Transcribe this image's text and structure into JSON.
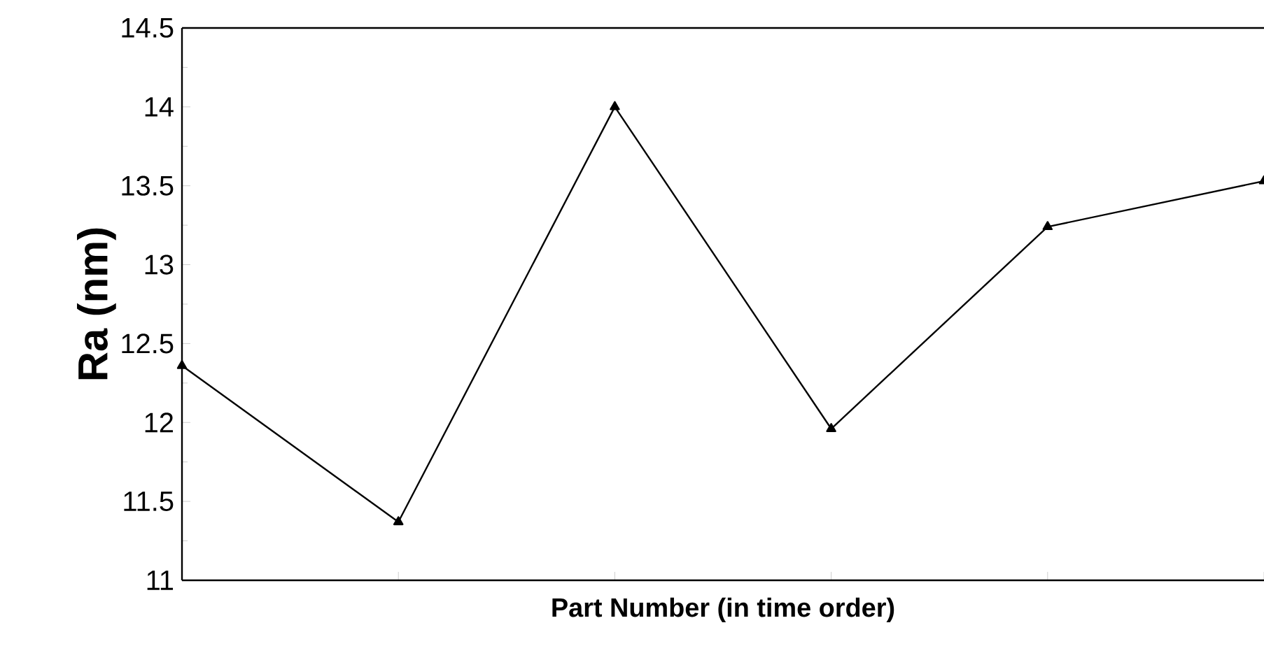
{
  "chart_data": {
    "type": "line",
    "xlabel": "Part Number (in time order)",
    "ylabel": "Ra (nm)",
    "categories": [
      null,
      null,
      null,
      null,
      null,
      null
    ],
    "series": [
      {
        "color": "#000000",
        "values": [
          12.36,
          11.37,
          14.0,
          11.96,
          13.24,
          13.53
        ]
      }
    ],
    "ylim": [
      11,
      14.5
    ],
    "yticks": [
      11,
      11.5,
      12,
      12.5,
      13,
      13.5,
      14,
      14.5
    ],
    "marker": "triangle",
    "line_style": "solid",
    "tick_labels": "y"
  }
}
